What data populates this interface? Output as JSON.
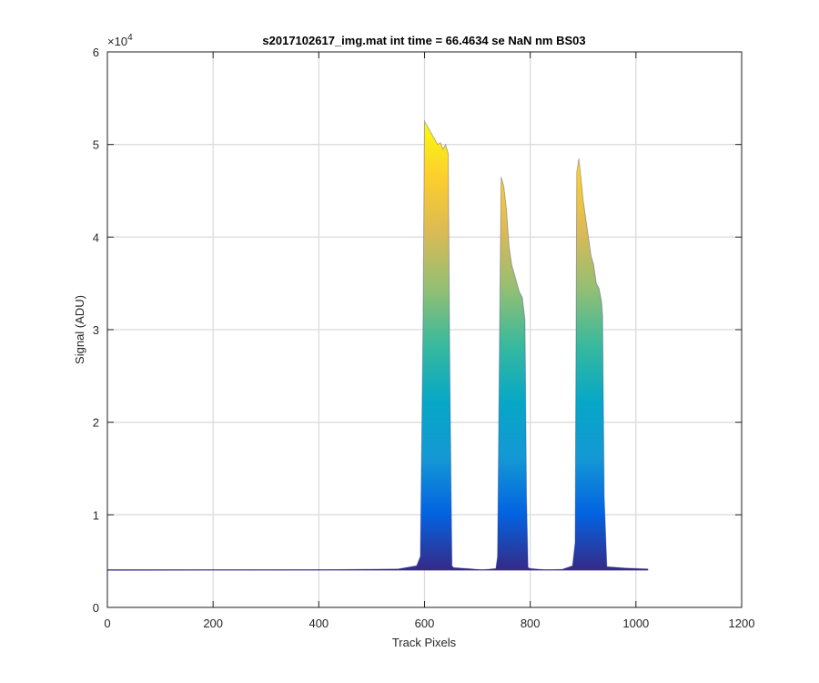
{
  "chart_data": {
    "type": "area",
    "title": "s2017102617_img.mat int time = 66.4634 se  NaN nm BS03",
    "xlabel": "Track Pixels",
    "ylabel": "Signal (ADU)",
    "y_exponent_label": "×10",
    "y_exponent": "4",
    "xlim": [
      0,
      1200
    ],
    "ylim": [
      0,
      60000
    ],
    "x_ticks": [
      0,
      200,
      400,
      600,
      800,
      1000,
      1200
    ],
    "y_ticks": [
      0,
      10000,
      20000,
      30000,
      40000,
      50000,
      60000
    ],
    "x_tick_labels": [
      "0",
      "200",
      "400",
      "600",
      "800",
      "1000",
      "1200"
    ],
    "y_tick_labels": [
      "0",
      "1",
      "2",
      "3",
      "4",
      "5",
      "6"
    ],
    "grid": true,
    "colormap": [
      "#352a87",
      "#0363e1",
      "#1498d4",
      "#06a7c6",
      "#38b99e",
      "#92bf73",
      "#d9ba56",
      "#fcce2e",
      "#f9fb0e"
    ],
    "baseline": 4050,
    "series": [
      {
        "x": [
          0,
          200,
          400,
          550,
          585,
          592,
          597,
          600,
          605,
          610,
          615,
          620,
          625,
          630,
          635,
          640,
          645,
          648,
          652,
          655,
          680,
          710,
          735,
          738,
          742,
          745,
          750,
          755,
          760,
          765,
          770,
          775,
          780,
          785,
          790,
          793,
          796,
          800,
          830,
          860,
          880,
          885,
          888,
          892,
          895,
          900,
          905,
          910,
          915,
          920,
          925,
          930,
          935,
          937,
          940,
          945,
          980,
          1023
        ],
        "y": [
          4000,
          4030,
          4060,
          4150,
          4500,
          5500,
          30000,
          52500,
          52000,
          51500,
          51000,
          50500,
          50000,
          50200,
          49500,
          50000,
          49000,
          25000,
          4500,
          4300,
          4200,
          4050,
          4200,
          5500,
          30000,
          46500,
          45500,
          43000,
          39000,
          37000,
          36000,
          35000,
          34000,
          33500,
          31000,
          12000,
          4300,
          4200,
          4050,
          4100,
          4500,
          7000,
          47000,
          48500,
          47000,
          44000,
          42000,
          40000,
          38000,
          37000,
          35000,
          34500,
          33000,
          31500,
          12000,
          4400,
          4250,
          4150
        ]
      }
    ]
  }
}
